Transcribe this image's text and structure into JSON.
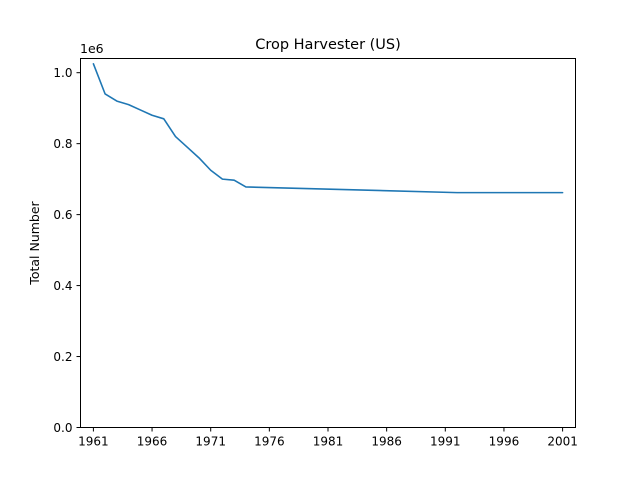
{
  "chart_data": {
    "type": "line",
    "title": "Crop Harvester (US)",
    "xlabel": "",
    "ylabel": "Total Number",
    "y_offset_label": "1e6",
    "y_scale": 1000000,
    "xlim": [
      1959.9,
      2002.1
    ],
    "ylim": [
      0,
      1040000
    ],
    "x_ticks": [
      1961,
      1966,
      1971,
      1976,
      1981,
      1986,
      1991,
      1996,
      2001
    ],
    "y_ticks": [
      0,
      0.2,
      0.4,
      0.6,
      0.8,
      1.0
    ],
    "y_tick_labels": [
      "0.0",
      "0.2",
      "0.4",
      "0.6",
      "0.8",
      "1.0"
    ],
    "grid": false,
    "color": "#1f77b4",
    "series": [
      {
        "x": [
          1961,
          1962,
          1963,
          1964,
          1965,
          1966,
          1967,
          1968,
          1969,
          1970,
          1971,
          1972,
          1973,
          1974,
          1992,
          1997,
          2001
        ],
        "y": [
          1025000,
          940000,
          920000,
          910000,
          895000,
          880000,
          870000,
          820000,
          790000,
          760000,
          725000,
          700000,
          697000,
          678000,
          662000,
          662000,
          662000
        ]
      }
    ]
  }
}
